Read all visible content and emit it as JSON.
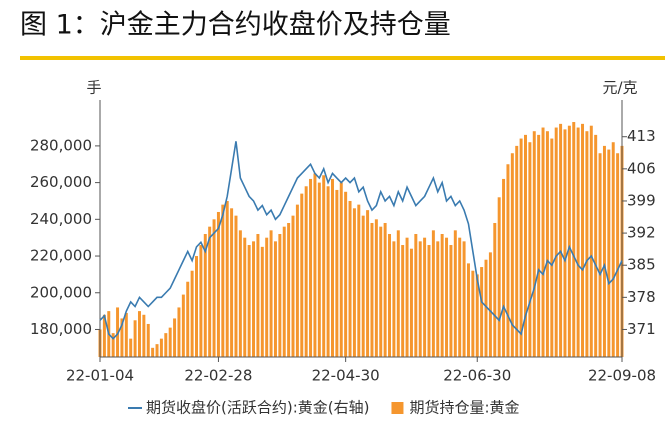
{
  "chart_data": {
    "type": "bar",
    "title": "图 1：沪金主力合约收盘价及持仓量",
    "y_label": "手",
    "y2_label": "元/克",
    "legend": "bottom",
    "categories": [
      "22-01-04",
      null,
      null,
      null,
      null,
      null,
      null,
      null,
      null,
      null,
      null,
      null,
      null,
      null,
      null,
      null,
      null,
      null,
      null,
      null,
      null,
      null,
      null,
      null,
      null,
      null,
      null,
      "22-02-28",
      null,
      null,
      null,
      null,
      null,
      null,
      null,
      null,
      null,
      null,
      null,
      null,
      null,
      null,
      null,
      null,
      null,
      null,
      null,
      null,
      null,
      null,
      null,
      null,
      null,
      null,
      null,
      null,
      "22-04-30",
      null,
      null,
      null,
      null,
      null,
      null,
      null,
      null,
      null,
      null,
      null,
      null,
      null,
      null,
      null,
      null,
      null,
      null,
      null,
      null,
      null,
      null,
      null,
      null,
      null,
      null,
      null,
      null,
      null,
      "22-06-30",
      null,
      null,
      null,
      null,
      null,
      null,
      null,
      null,
      null,
      null,
      null,
      null,
      null,
      null,
      null,
      null,
      null,
      null,
      null,
      null,
      null,
      null,
      null,
      null,
      null,
      null,
      null,
      null,
      null,
      null,
      null,
      null,
      "22-09-08"
    ],
    "ylim": [
      165000,
      305000
    ],
    "yticks": [
      {
        "value": 180000,
        "label": "180,000"
      },
      {
        "value": 200000,
        "label": "200,000"
      },
      {
        "value": 220000,
        "label": "220,000"
      },
      {
        "value": 240000,
        "label": "240,000"
      },
      {
        "value": 260000,
        "label": "260,000"
      },
      {
        "value": 280000,
        "label": "280,000"
      }
    ],
    "y2lim": [
      365,
      421
    ],
    "y2ticks": [
      371,
      378,
      385,
      392,
      399,
      406,
      413
    ],
    "series": [
      {
        "name": "期货收盘价(活跃合约):黄金(右轴)",
        "type": "line",
        "axis": "y2",
        "color": "#3a7bb0",
        "values": [
          373,
          374,
          370,
          369,
          370,
          372,
          375,
          377,
          376,
          378,
          377,
          376,
          377,
          378,
          378,
          379,
          380,
          382,
          384,
          386,
          388,
          386,
          389,
          390,
          388,
          391,
          392,
          393,
          396,
          400,
          406,
          412,
          404,
          402,
          400,
          399,
          397,
          398,
          396,
          397,
          395,
          396,
          398,
          400,
          402,
          404,
          405,
          406,
          407,
          405,
          404,
          406,
          403,
          405,
          404,
          403,
          404,
          403,
          404,
          401,
          402,
          399,
          397,
          398,
          401,
          399,
          400,
          398,
          401,
          399,
          402,
          400,
          398,
          399,
          400,
          402,
          404,
          401,
          403,
          399,
          400,
          398,
          399,
          397,
          394,
          388,
          382,
          377,
          376,
          375,
          374,
          373,
          376,
          374,
          372,
          371,
          370,
          374,
          377,
          380,
          384,
          383,
          386,
          385,
          387,
          388,
          386,
          389,
          387,
          385,
          384,
          386,
          387,
          385,
          383,
          385,
          381,
          382,
          384,
          386
        ]
      },
      {
        "name": "期货持仓量:黄金",
        "type": "bar",
        "color": "#f5962e",
        "values": [
          180000,
          188000,
          190000,
          178000,
          192000,
          186000,
          189000,
          175000,
          185000,
          190000,
          188000,
          183000,
          170000,
          172000,
          175000,
          178000,
          181000,
          186000,
          192000,
          199000,
          206000,
          212000,
          220000,
          226000,
          232000,
          236000,
          240000,
          244000,
          248000,
          250000,
          246000,
          242000,
          234000,
          230000,
          226000,
          228000,
          232000,
          225000,
          230000,
          234000,
          228000,
          232000,
          236000,
          238000,
          242000,
          248000,
          254000,
          258000,
          262000,
          265000,
          260000,
          264000,
          258000,
          262000,
          256000,
          260000,
          255000,
          250000,
          246000,
          248000,
          242000,
          245000,
          238000,
          240000,
          236000,
          238000,
          232000,
          228000,
          234000,
          226000,
          230000,
          224000,
          232000,
          228000,
          230000,
          226000,
          234000,
          228000,
          232000,
          230000,
          226000,
          234000,
          230000,
          228000,
          216000,
          212000,
          210000,
          214000,
          218000,
          222000,
          238000,
          252000,
          262000,
          270000,
          276000,
          280000,
          284000,
          286000,
          282000,
          288000,
          286000,
          290000,
          288000,
          284000,
          290000,
          292000,
          289000,
          291000,
          293000,
          290000,
          292000,
          288000,
          291000,
          286000,
          276000,
          280000,
          278000,
          282000,
          276000,
          280000
        ]
      }
    ]
  }
}
